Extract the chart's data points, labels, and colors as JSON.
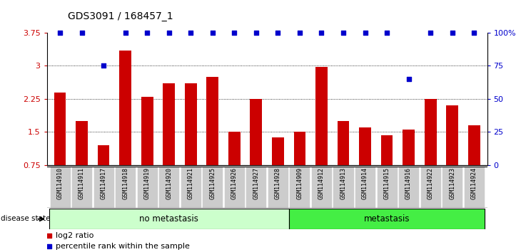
{
  "title": "GDS3091 / 168457_1",
  "samples": [
    "GSM114910",
    "GSM114911",
    "GSM114917",
    "GSM114918",
    "GSM114919",
    "GSM114920",
    "GSM114921",
    "GSM114925",
    "GSM114926",
    "GSM114927",
    "GSM114928",
    "GSM114909",
    "GSM114912",
    "GSM114913",
    "GSM114914",
    "GSM114915",
    "GSM114916",
    "GSM114922",
    "GSM114923",
    "GSM114924"
  ],
  "log2_ratio": [
    2.4,
    1.75,
    1.2,
    3.35,
    2.3,
    2.6,
    2.6,
    2.75,
    1.5,
    2.25,
    1.38,
    1.5,
    2.97,
    1.75,
    1.6,
    1.42,
    1.55,
    2.25,
    2.1,
    1.65
  ],
  "percentile_rank": [
    100,
    100,
    75,
    100,
    100,
    100,
    100,
    100,
    100,
    100,
    100,
    100,
    100,
    100,
    100,
    100,
    65,
    100,
    100,
    100
  ],
  "no_metastasis_count": 11,
  "metastasis_count": 9,
  "ylim_left": [
    0.75,
    3.75
  ],
  "yticks_left": [
    0.75,
    1.5,
    2.25,
    3.0,
    3.75
  ],
  "ytick_labels_left": [
    "0.75",
    "1.5",
    "2.25",
    "3",
    "3.75"
  ],
  "ylim_right": [
    0,
    100
  ],
  "yticks_right": [
    0,
    25,
    50,
    75,
    100
  ],
  "ytick_labels_right": [
    "0",
    "25",
    "50",
    "75",
    "100%"
  ],
  "bar_color": "#cc0000",
  "dot_color": "#0000cc",
  "no_meta_color_light": "#ccffcc",
  "meta_color": "#44ee44",
  "tick_label_bg": "#cccccc",
  "legend_items": [
    {
      "color": "#cc0000",
      "label": "log2 ratio"
    },
    {
      "color": "#0000cc",
      "label": "percentile rank within the sample"
    }
  ]
}
